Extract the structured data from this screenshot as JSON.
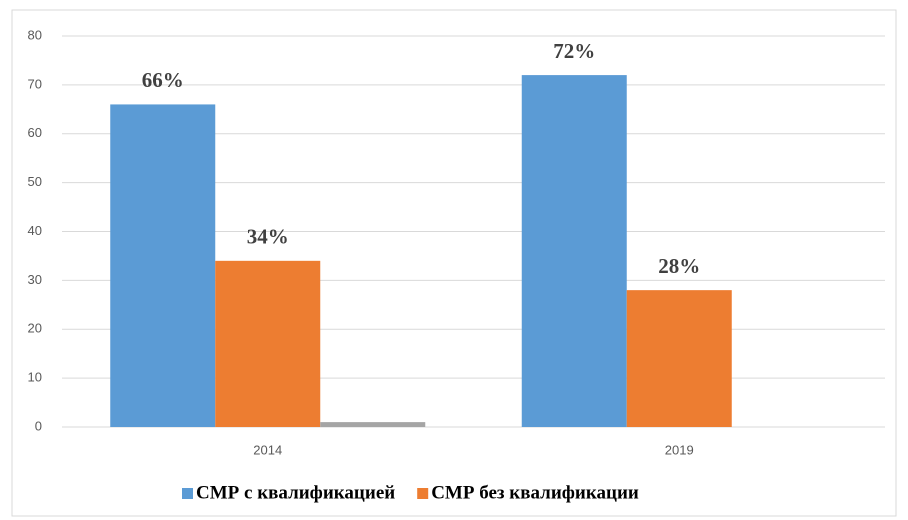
{
  "chart_data": {
    "type": "bar",
    "categories": [
      "2014",
      "2019"
    ],
    "series": [
      {
        "name": "СМР с квалификацией",
        "color": "#5b9bd5",
        "values": [
          66,
          72
        ],
        "value_labels": [
          "66%",
          "72%"
        ]
      },
      {
        "name": "СМР без квалификации",
        "color": "#ed7d31",
        "values": [
          34,
          28
        ],
        "value_labels": [
          "34%",
          "28%"
        ]
      },
      {
        "color": "#a5a5a5",
        "values": [
          1,
          0
        ]
      }
    ],
    "ylim": [
      0,
      80
    ],
    "yticks": [
      0,
      10,
      20,
      30,
      40,
      50,
      60,
      70,
      80
    ],
    "grid": true
  }
}
